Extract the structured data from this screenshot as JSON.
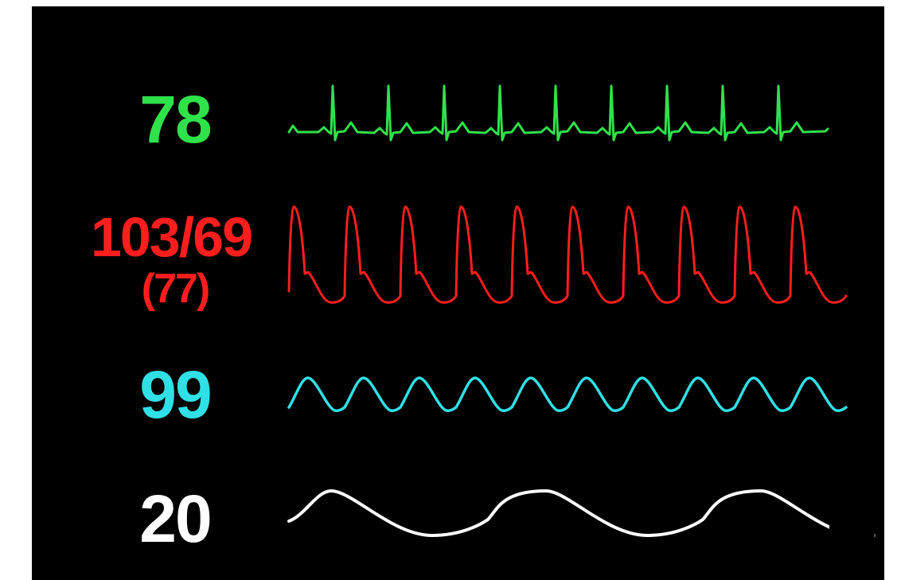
{
  "vitals": {
    "heart_rate": {
      "value": "78",
      "color": "#2fe24a",
      "beats_shown": 9
    },
    "blood_pressure": {
      "value": "103/69",
      "mean": "(77)",
      "color": "#ff1e1e",
      "beats_shown": 10
    },
    "spo2": {
      "value": "99",
      "color": "#2fe0e6",
      "beats_shown": 10
    },
    "respiration": {
      "value": "20",
      "color": "#ffffff",
      "breaths_shown": 3
    }
  },
  "icons": {
    "ecg": "ecg-waveform",
    "arterial": "arterial-pressure-waveform",
    "pleth": "pleth-waveform",
    "resp": "respiration-waveform"
  }
}
